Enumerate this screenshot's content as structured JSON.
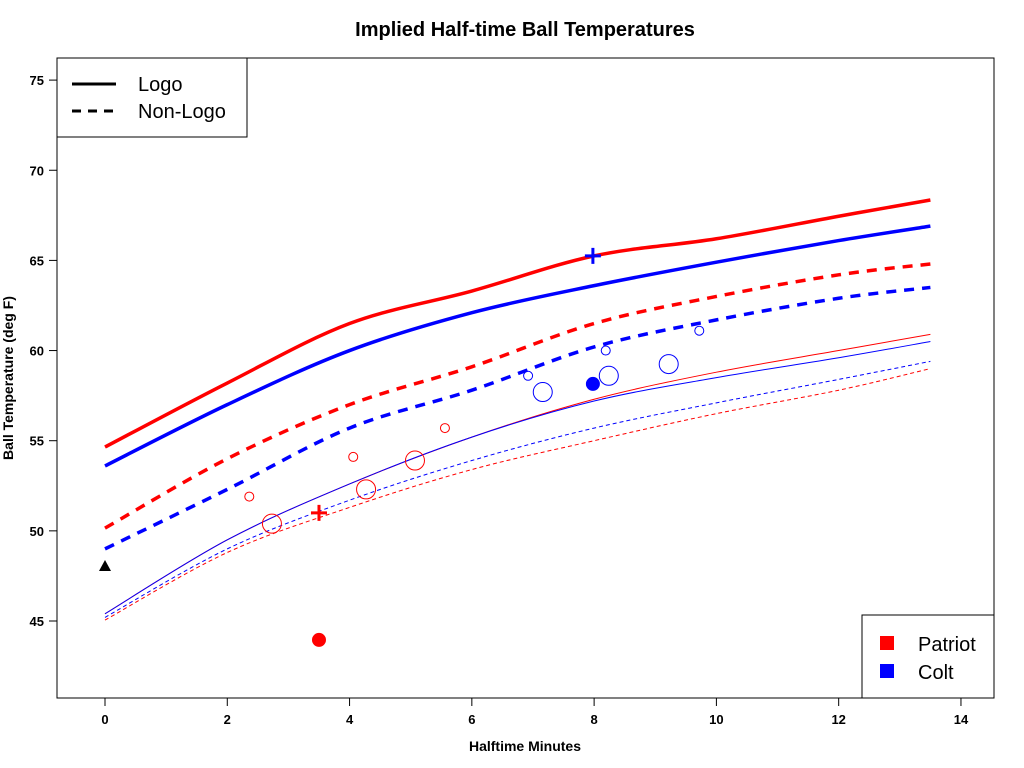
{
  "chart_data": {
    "type": "line",
    "title": "Implied Half-time Ball Temperatures",
    "xlabel": "Halftime Minutes",
    "ylabel": "Ball Temperature (deg F)",
    "xlim": [
      -1,
      15
    ],
    "ylim": [
      41.2,
      76.4
    ],
    "xticks": [
      0,
      2,
      4,
      6,
      8,
      10,
      12,
      14
    ],
    "yticks": [
      45,
      50,
      55,
      60,
      65,
      70,
      75
    ],
    "grid": false,
    "x": [
      0,
      2,
      4,
      6,
      8,
      10,
      12,
      13.5
    ],
    "series": [
      {
        "team": "Patriot",
        "type": "Logo",
        "weight": "thick",
        "color": "#ff0000",
        "values": [
          54.65,
          58.2,
          61.5,
          63.3,
          65.25,
          66.2,
          67.45,
          68.35
        ]
      },
      {
        "team": "Colt",
        "type": "Logo",
        "weight": "thick",
        "color": "#0000ff",
        "values": [
          53.6,
          57.0,
          60.0,
          62.1,
          63.6,
          64.9,
          66.1,
          66.9
        ]
      },
      {
        "team": "Patriot",
        "type": "Non-Logo",
        "weight": "thick",
        "color": "#ff0000",
        "values": [
          50.15,
          54.0,
          57.0,
          59.1,
          61.5,
          63.0,
          64.2,
          64.8
        ]
      },
      {
        "team": "Colt",
        "type": "Non-Logo",
        "weight": "thick",
        "color": "#0000ff",
        "values": [
          49.0,
          52.3,
          55.7,
          57.8,
          60.2,
          61.7,
          62.9,
          63.5
        ]
      },
      {
        "team": "Patriot",
        "type": "Logo",
        "weight": "thin",
        "color": "#ff0000",
        "values": [
          45.4,
          49.5,
          52.6,
          55.2,
          57.3,
          58.8,
          60.0,
          60.9
        ]
      },
      {
        "team": "Colt",
        "type": "Logo",
        "weight": "thin",
        "color": "#0000ff",
        "values": [
          45.4,
          49.5,
          52.6,
          55.2,
          57.2,
          58.5,
          59.6,
          60.5
        ]
      },
      {
        "team": "Colt",
        "type": "Non-Logo",
        "weight": "thin",
        "color": "#0000ff",
        "values": [
          45.2,
          49.0,
          51.7,
          53.9,
          55.7,
          57.1,
          58.4,
          59.4
        ]
      },
      {
        "team": "Patriot",
        "type": "Non-Logo",
        "weight": "thin",
        "color": "#ff0000",
        "values": [
          45.05,
          48.8,
          51.3,
          53.4,
          55.0,
          56.5,
          57.8,
          59.0
        ]
      }
    ],
    "points": [
      {
        "x": 2.36,
        "y": 51.9,
        "marker": "circle-small",
        "color": "#ff0000"
      },
      {
        "x": 4.06,
        "y": 54.1,
        "marker": "circle-small",
        "color": "#ff0000"
      },
      {
        "x": 5.56,
        "y": 55.7,
        "marker": "circle-small",
        "color": "#ff0000"
      },
      {
        "x": 2.73,
        "y": 50.4,
        "marker": "circle-large",
        "color": "#ff0000"
      },
      {
        "x": 4.27,
        "y": 52.3,
        "marker": "circle-large",
        "color": "#ff0000"
      },
      {
        "x": 5.07,
        "y": 53.9,
        "marker": "circle-large",
        "color": "#ff0000"
      },
      {
        "x": 3.5,
        "y": 51.0,
        "marker": "plus",
        "color": "#ff0000"
      },
      {
        "x": 3.5,
        "y": 43.95,
        "marker": "filled",
        "color": "#ff0000"
      },
      {
        "x": 6.92,
        "y": 58.6,
        "marker": "circle-small",
        "color": "#0000ff"
      },
      {
        "x": 8.19,
        "y": 60.0,
        "marker": "circle-small",
        "color": "#0000ff"
      },
      {
        "x": 9.72,
        "y": 61.1,
        "marker": "circle-small",
        "color": "#0000ff"
      },
      {
        "x": 7.16,
        "y": 57.7,
        "marker": "circle-large",
        "color": "#0000ff"
      },
      {
        "x": 8.24,
        "y": 58.6,
        "marker": "circle-large",
        "color": "#0000ff"
      },
      {
        "x": 9.22,
        "y": 59.25,
        "marker": "circle-large",
        "color": "#0000ff"
      },
      {
        "x": 7.98,
        "y": 58.15,
        "marker": "filled",
        "color": "#0000ff"
      },
      {
        "x": 7.98,
        "y": 65.25,
        "marker": "plus",
        "color": "#0000ff"
      },
      {
        "x": 0,
        "y": 48.05,
        "marker": "triangle",
        "color": "#000000"
      }
    ],
    "legend_lines": {
      "position": "top-left",
      "entries": [
        "Logo",
        "Non-Logo"
      ]
    },
    "legend_teams": {
      "position": "bottom-right",
      "entries": [
        {
          "label": "Patriot",
          "color": "#ff0000"
        },
        {
          "label": "Colt",
          "color": "#0000ff"
        }
      ]
    }
  }
}
